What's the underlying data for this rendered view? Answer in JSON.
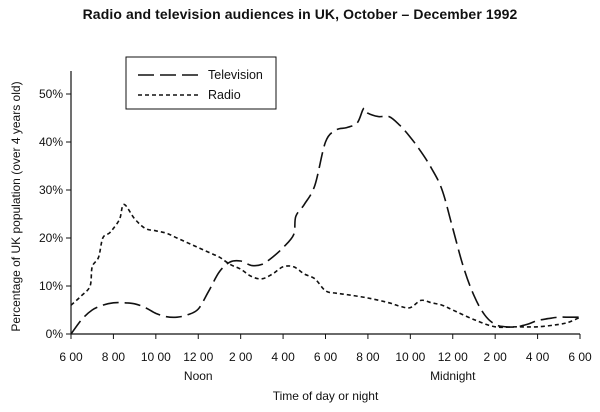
{
  "chart_data": {
    "type": "line",
    "title": "Radio and television audiences in UK, October – December 1992",
    "xlabel": "Time of day or night",
    "ylabel": "Percentage of UK population (over 4 years old)",
    "ylim": [
      0,
      50
    ],
    "yticks": [
      {
        "value": 0,
        "label": "0%"
      },
      {
        "value": 10,
        "label": "10%"
      },
      {
        "value": 20,
        "label": "20%"
      },
      {
        "value": 30,
        "label": "30%"
      },
      {
        "value": 40,
        "label": "40%"
      },
      {
        "value": 50,
        "label": "50%"
      }
    ],
    "xlim": [
      6,
      30
    ],
    "xticks": [
      {
        "value": 6,
        "label": "6 00"
      },
      {
        "value": 8,
        "label": "8 00"
      },
      {
        "value": 10,
        "label": "10 00"
      },
      {
        "value": 12,
        "label": "12 00"
      },
      {
        "value": 14,
        "label": "2 00"
      },
      {
        "value": 16,
        "label": "4 00"
      },
      {
        "value": 18,
        "label": "6 00"
      },
      {
        "value": 20,
        "label": "8 00"
      },
      {
        "value": 22,
        "label": "10 00"
      },
      {
        "value": 24,
        "label": "12 00"
      },
      {
        "value": 26,
        "label": "2 00"
      },
      {
        "value": 28,
        "label": "4 00"
      },
      {
        "value": 30,
        "label": "6 00"
      }
    ],
    "annotations": [
      {
        "x": 12,
        "text": "Noon"
      },
      {
        "x": 24,
        "text": "Midnight"
      }
    ],
    "grid": false,
    "legend_position": "top-left",
    "series": [
      {
        "name": "Television",
        "dash": "long-dash",
        "points": [
          [
            6,
            0
          ],
          [
            6.5,
            3
          ],
          [
            7,
            5
          ],
          [
            7.5,
            6
          ],
          [
            8,
            6.5
          ],
          [
            8.5,
            6.5
          ],
          [
            9,
            6.3
          ],
          [
            9.5,
            5.5
          ],
          [
            10,
            4.3
          ],
          [
            10.5,
            3.6
          ],
          [
            11,
            3.5
          ],
          [
            11.5,
            4
          ],
          [
            12,
            5.2
          ],
          [
            12.5,
            9
          ],
          [
            13,
            13
          ],
          [
            13.5,
            15
          ],
          [
            14,
            15.2
          ],
          [
            14.5,
            14.3
          ],
          [
            15,
            14.5
          ],
          [
            15.5,
            16
          ],
          [
            16,
            18
          ],
          [
            16.5,
            20.7
          ],
          [
            16.6,
            24.5
          ],
          [
            17,
            27
          ],
          [
            17.5,
            31
          ],
          [
            18,
            40
          ],
          [
            18.5,
            42.5
          ],
          [
            19,
            43
          ],
          [
            19.5,
            44
          ],
          [
            19.8,
            47
          ],
          [
            20,
            46
          ],
          [
            20.5,
            45.3
          ],
          [
            21,
            45.3
          ],
          [
            21.5,
            43.5
          ],
          [
            22,
            41
          ],
          [
            22.5,
            38
          ],
          [
            23,
            34.5
          ],
          [
            23.5,
            30
          ],
          [
            24,
            22
          ],
          [
            24.5,
            14
          ],
          [
            25,
            8
          ],
          [
            25.5,
            4
          ],
          [
            26,
            2
          ],
          [
            26.5,
            1.5
          ],
          [
            27,
            1.5
          ],
          [
            27.5,
            2
          ],
          [
            28,
            2.8
          ],
          [
            28.5,
            3.2
          ],
          [
            29,
            3.5
          ],
          [
            29.5,
            3.5
          ],
          [
            30,
            3.5
          ]
        ]
      },
      {
        "name": "Radio",
        "dash": "short-dash",
        "points": [
          [
            6,
            6
          ],
          [
            6.5,
            8
          ],
          [
            6.9,
            10
          ],
          [
            7,
            14
          ],
          [
            7.3,
            16
          ],
          [
            7.5,
            20
          ],
          [
            7.8,
            21
          ],
          [
            8,
            22
          ],
          [
            8.3,
            24
          ],
          [
            8.5,
            27
          ],
          [
            9,
            24
          ],
          [
            9.5,
            22
          ],
          [
            10,
            21.5
          ],
          [
            10.5,
            21
          ],
          [
            11,
            20
          ],
          [
            11.5,
            19
          ],
          [
            12,
            18
          ],
          [
            12.5,
            17
          ],
          [
            13,
            16
          ],
          [
            13.5,
            14.5
          ],
          [
            14,
            13.5
          ],
          [
            14.5,
            12
          ],
          [
            15,
            11.5
          ],
          [
            15.5,
            12.5
          ],
          [
            16,
            14
          ],
          [
            16.5,
            14
          ],
          [
            17,
            12.5
          ],
          [
            17.5,
            11.5
          ],
          [
            18,
            9
          ],
          [
            18.5,
            8.5
          ],
          [
            19,
            8.2
          ],
          [
            20,
            7.5
          ],
          [
            21,
            6.5
          ],
          [
            21.5,
            5.8
          ],
          [
            22,
            5.5
          ],
          [
            22.5,
            7
          ],
          [
            23,
            6.5
          ],
          [
            23.5,
            6
          ],
          [
            24,
            5
          ],
          [
            25,
            3
          ],
          [
            26,
            1.5
          ],
          [
            27,
            1.5
          ],
          [
            28,
            1.5
          ],
          [
            29,
            2
          ],
          [
            29.5,
            2.5
          ],
          [
            30,
            3.5
          ]
        ]
      }
    ]
  }
}
